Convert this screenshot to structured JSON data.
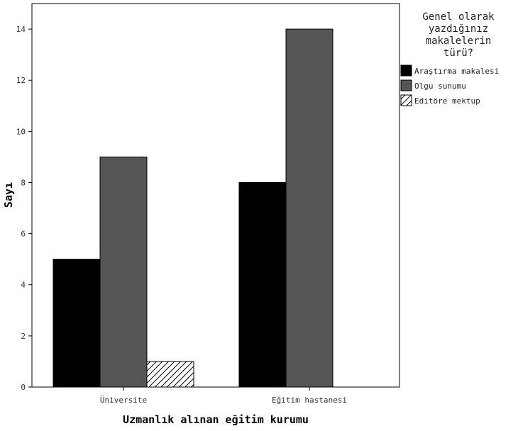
{
  "chart_data": {
    "type": "bar",
    "categories": [
      "Üniversite",
      "Eğitim hastanesi"
    ],
    "series": [
      {
        "name": "Araştırma makalesi",
        "values": [
          5,
          8
        ],
        "fill": "#000000"
      },
      {
        "name": "Olgu sunumu",
        "values": [
          9,
          14
        ],
        "fill": "#555555"
      },
      {
        "name": "Editöre mektup",
        "values": [
          1,
          0
        ],
        "fill": "hatch"
      }
    ],
    "xlabel": "Uzmanlık alınan eğitim kurumu",
    "ylabel": "Sayı",
    "ylim": [
      0,
      15
    ],
    "yticks": [
      0,
      2,
      4,
      6,
      8,
      10,
      12,
      14
    ],
    "grid": false,
    "legend": {
      "title_lines": [
        "Genel olarak",
        "yazdığınız",
        "makalelerin",
        "türü?"
      ],
      "placement": "right"
    }
  }
}
